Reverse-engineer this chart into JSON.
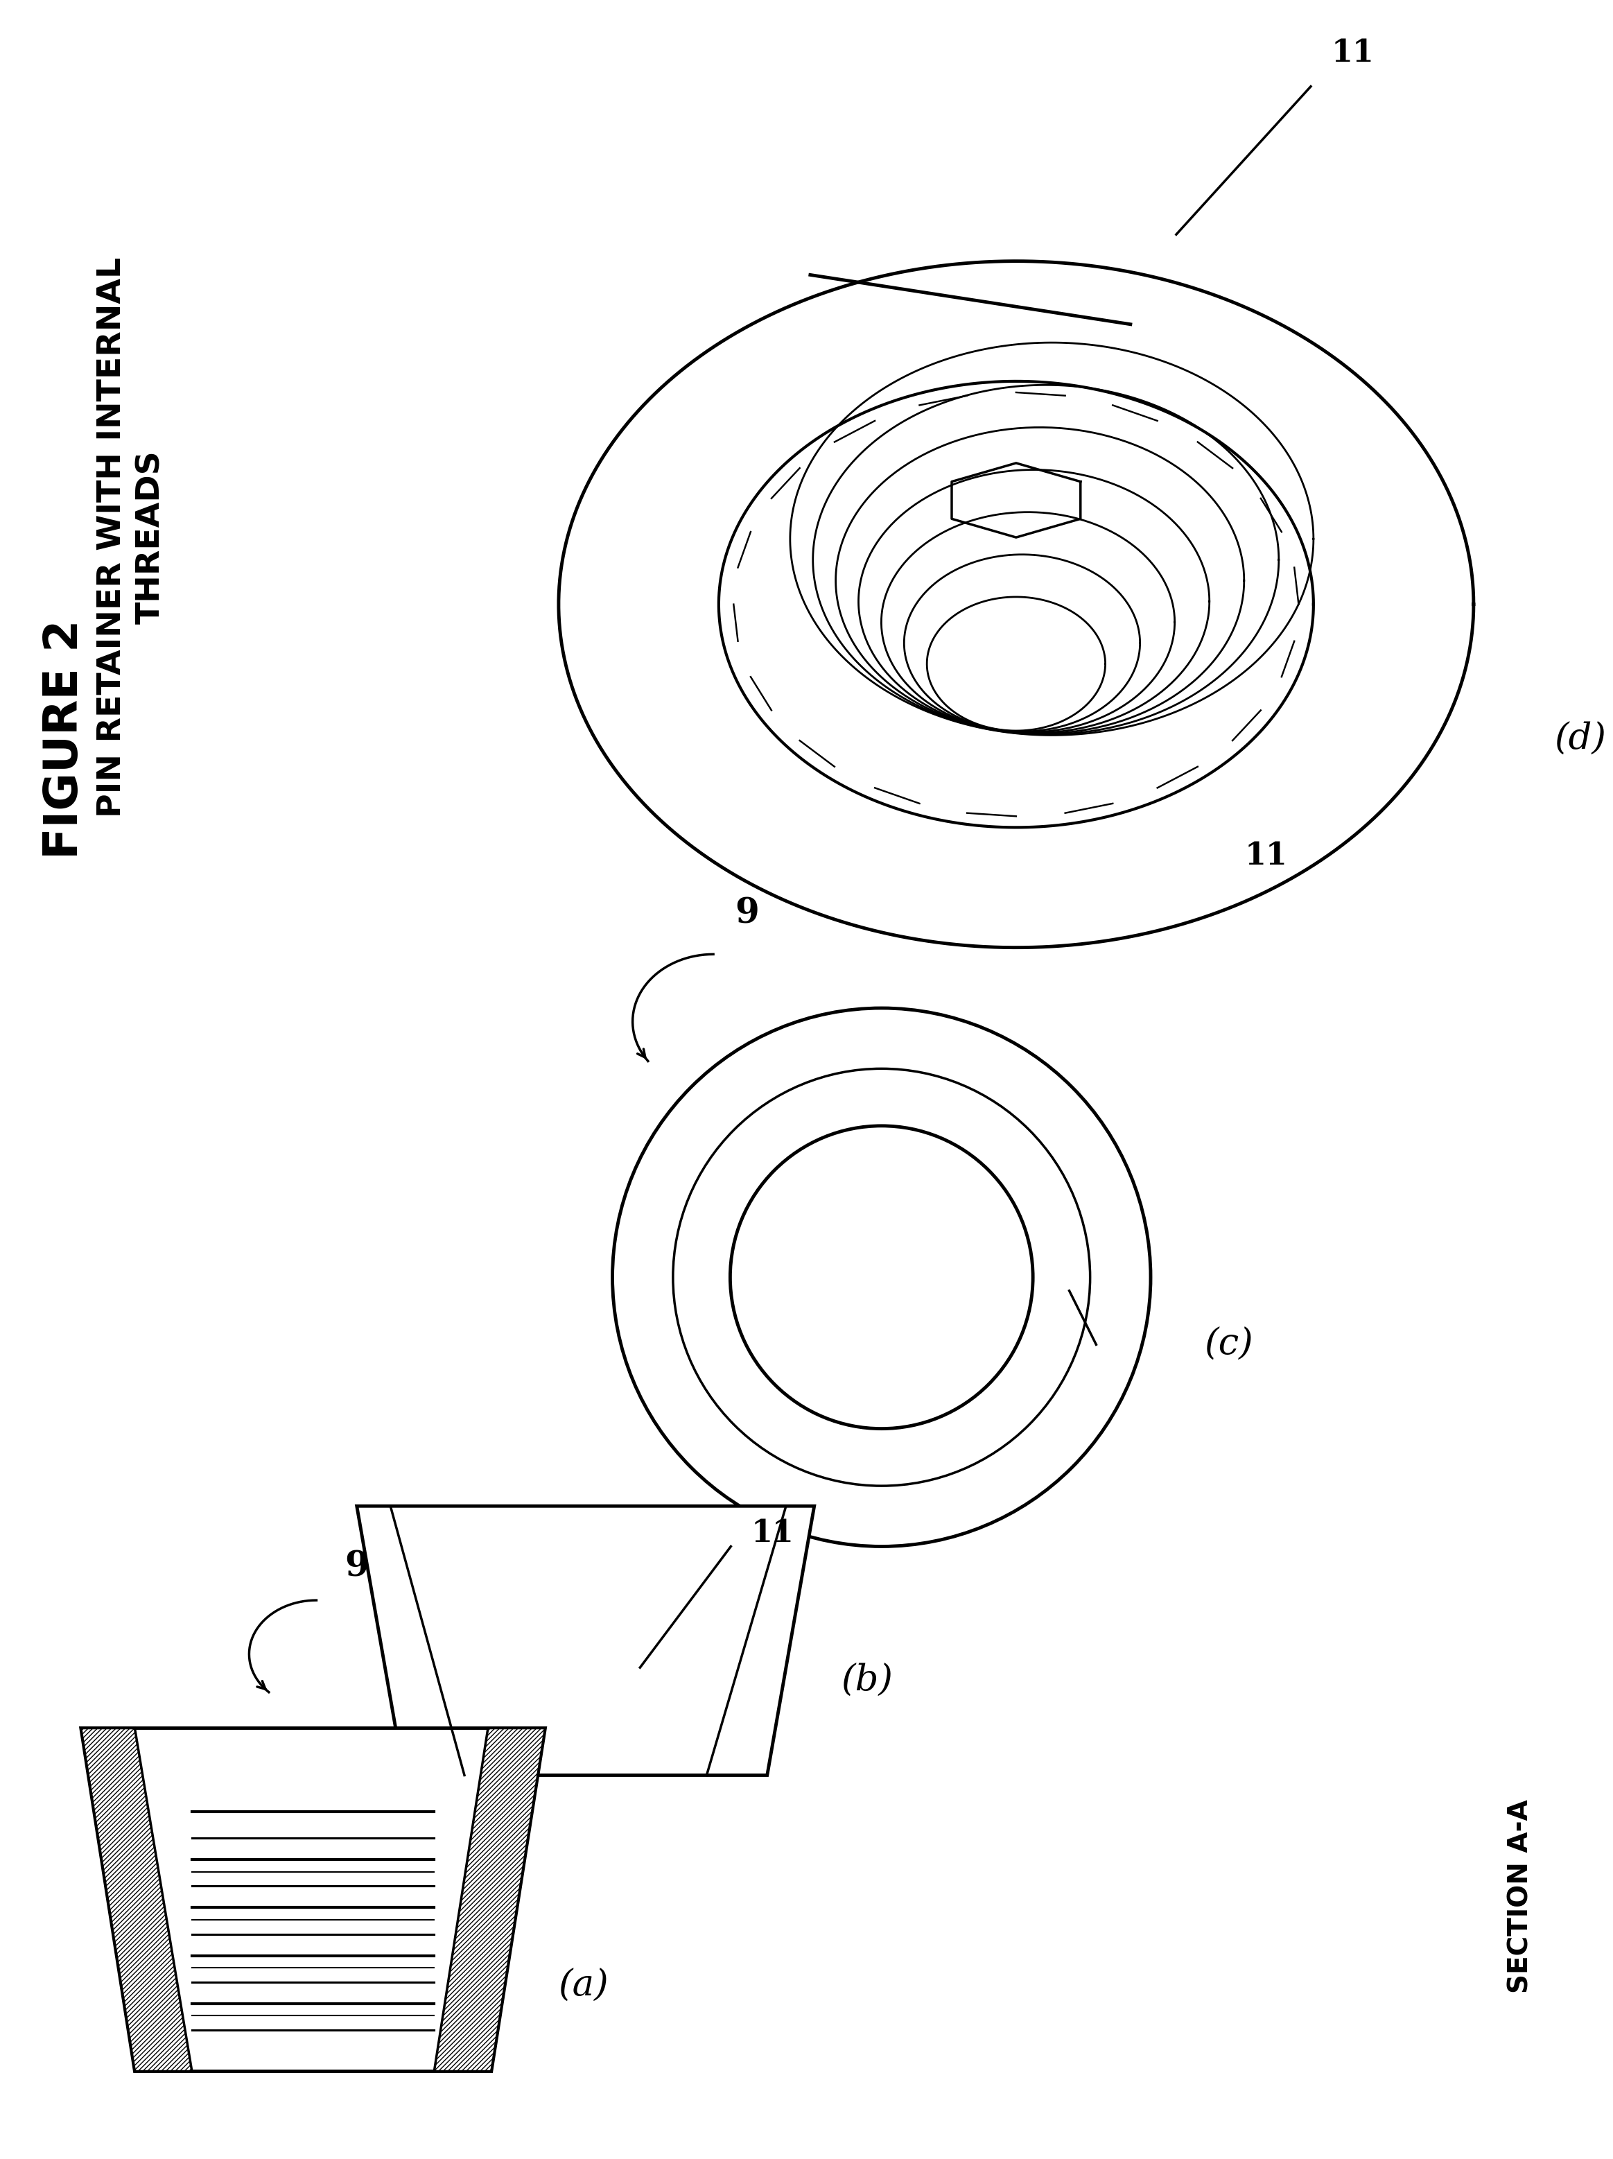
{
  "bg_color": "#ffffff",
  "lw": 2.5,
  "lw_thick": 3.5,
  "fig_label": "FIGURE 2",
  "pin_label": "PIN RETAINER WITH INTERNAL\nTHREADS",
  "section_label": "SECTION A-A",
  "ref_9": "9",
  "ref_11": "11",
  "label_a": "(a)",
  "label_b": "(b)",
  "label_c": "(c)",
  "label_d": "(d)"
}
